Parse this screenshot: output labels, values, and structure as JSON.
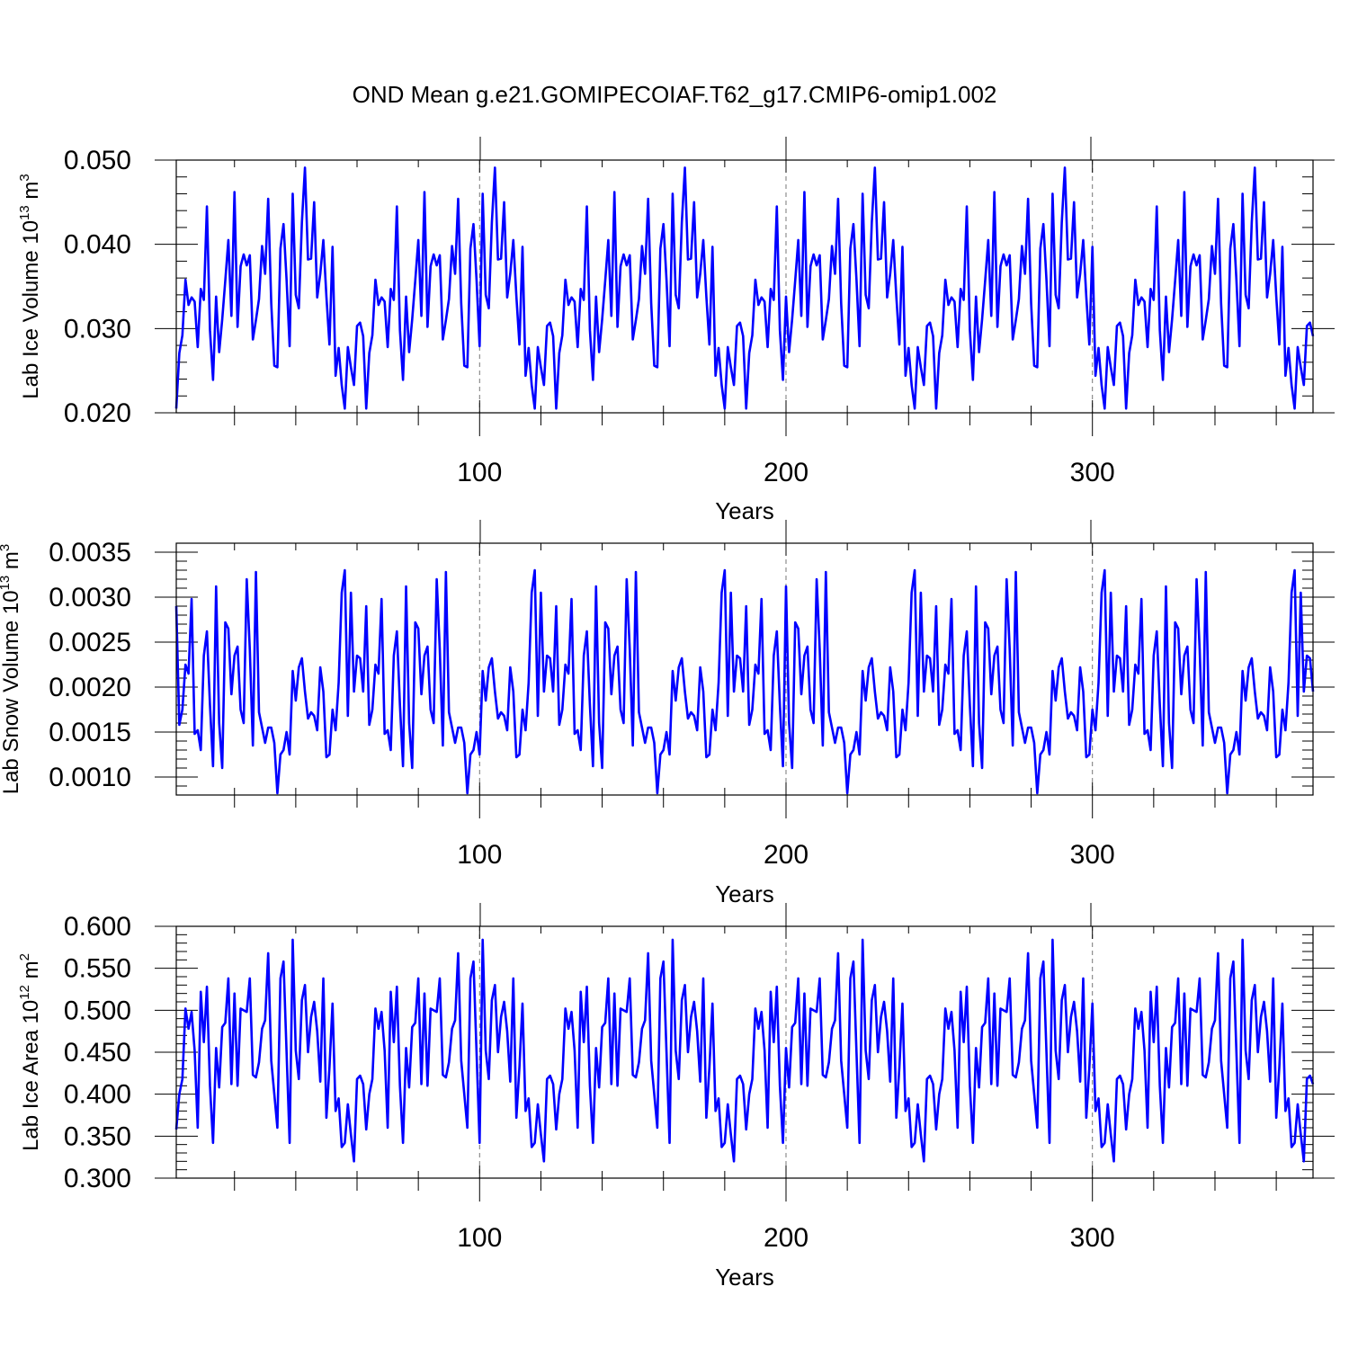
{
  "title": "OND Mean g.e21.GOMIPECOIAF.T62_g17.CMIP6-omip1.002",
  "line_color": "#0000ff",
  "chart_data": [
    {
      "type": "line",
      "ylabel": "Lab Ice Volume 10",
      "ylabel_exp": "13",
      "ylabel_unit": " m",
      "ylabel_unit_exp": "3",
      "xlabel": "Years",
      "xlim": [
        1,
        372
      ],
      "ylim": [
        0.02,
        0.05
      ],
      "xticks": [
        100,
        200,
        300
      ],
      "xtick_labels": [
        "100",
        "200",
        "300"
      ],
      "yticks": [
        0.02,
        0.03,
        0.04,
        0.05
      ],
      "ytick_labels": [
        "0.020",
        "0.030",
        "0.040",
        "0.050"
      ],
      "x_start": 1,
      "cycle_start": 1,
      "cycle_length": 62,
      "cycle_values": [
        0.0205,
        0.0271,
        0.0292,
        0.0358,
        0.0328,
        0.0337,
        0.0332,
        0.0278,
        0.0347,
        0.0334,
        0.0445,
        0.0298,
        0.0239,
        0.0338,
        0.0272,
        0.0311,
        0.0357,
        0.0405,
        0.0315,
        0.0462,
        0.0302,
        0.0374,
        0.0388,
        0.0375,
        0.0387,
        0.0287,
        0.031,
        0.0335,
        0.0398,
        0.0365,
        0.0454,
        0.033,
        0.0256,
        0.0254,
        0.0395,
        0.0424,
        0.0358,
        0.0279,
        0.046,
        0.034,
        0.0324,
        0.0426,
        0.0491,
        0.0382,
        0.0383,
        0.045,
        0.0337,
        0.0365,
        0.0405,
        0.0338,
        0.0281,
        0.0397,
        0.0244,
        0.0277,
        0.0233,
        0.0205,
        0.0278,
        0.0254,
        0.0233,
        0.0303,
        0.0307,
        0.0291
      ]
    },
    {
      "type": "line",
      "ylabel": "Lab Snow Volume 10",
      "ylabel_exp": "13",
      "ylabel_unit": " m",
      "ylabel_unit_exp": "3",
      "xlabel": "Years",
      "xlim": [
        1,
        372
      ],
      "ylim": [
        0.0008,
        0.0036
      ],
      "xticks": [
        100,
        200,
        300
      ],
      "xtick_labels": [
        "100",
        "200",
        "300"
      ],
      "yticks": [
        0.001,
        0.0015,
        0.002,
        0.0025,
        0.003,
        0.0035
      ],
      "ytick_labels": [
        "0.0010",
        "0.0015",
        "0.0020",
        "0.0025",
        "0.0030",
        "0.0035"
      ],
      "x_start": 1,
      "cycle_start": 13,
      "cycle_length": 62,
      "cycle_values": [
        0.00125,
        0.00175,
        0.00152,
        0.00205,
        0.00305,
        0.0033,
        0.00168,
        0.00305,
        0.00195,
        0.00235,
        0.00232,
        0.00195,
        0.0029,
        0.00158,
        0.00175,
        0.00225,
        0.00215,
        0.00298,
        0.00148,
        0.00152,
        0.0013,
        0.00235,
        0.00262,
        0.0018,
        0.00112,
        0.00312,
        0.0016,
        0.0011,
        0.00272,
        0.00265,
        0.00192,
        0.00235,
        0.00245,
        0.00175,
        0.0016,
        0.0032,
        0.00242,
        0.00135,
        0.00328,
        0.00172,
        0.00155,
        0.00138,
        0.00155,
        0.00155,
        0.00138,
        0.00082,
        0.00125,
        0.0013,
        0.0015,
        0.00125,
        0.00218,
        0.00185,
        0.00222,
        0.00232,
        0.00195,
        0.00165,
        0.00172,
        0.00168,
        0.00152,
        0.00222,
        0.00195,
        0.00122
      ]
    },
    {
      "type": "line",
      "ylabel": "Lab Ice Area 10",
      "ylabel_exp": "12",
      "ylabel_unit": " m",
      "ylabel_unit_exp": "2",
      "xlabel": "Years",
      "xlim": [
        1,
        372
      ],
      "ylim": [
        0.3,
        0.6
      ],
      "xticks": [
        100,
        200,
        300
      ],
      "xtick_labels": [
        "100",
        "200",
        "300"
      ],
      "yticks": [
        0.3,
        0.35,
        0.4,
        0.45,
        0.5,
        0.55,
        0.6
      ],
      "ytick_labels": [
        "0.300",
        "0.350",
        "0.400",
        "0.450",
        "0.500",
        "0.550",
        "0.600"
      ],
      "x_start": 1,
      "cycle_start": 1,
      "cycle_length": 62,
      "cycle_values": [
        0.358,
        0.4,
        0.418,
        0.502,
        0.478,
        0.498,
        0.452,
        0.36,
        0.522,
        0.462,
        0.528,
        0.41,
        0.342,
        0.455,
        0.408,
        0.48,
        0.485,
        0.538,
        0.412,
        0.52,
        0.41,
        0.502,
        0.5,
        0.498,
        0.538,
        0.423,
        0.42,
        0.438,
        0.478,
        0.488,
        0.568,
        0.44,
        0.4,
        0.36,
        0.538,
        0.558,
        0.45,
        0.342,
        0.584,
        0.452,
        0.418,
        0.512,
        0.53,
        0.45,
        0.492,
        0.51,
        0.475,
        0.415,
        0.538,
        0.372,
        0.432,
        0.508,
        0.38,
        0.395,
        0.337,
        0.342,
        0.388,
        0.352,
        0.32,
        0.418,
        0.422,
        0.412
      ]
    }
  ]
}
